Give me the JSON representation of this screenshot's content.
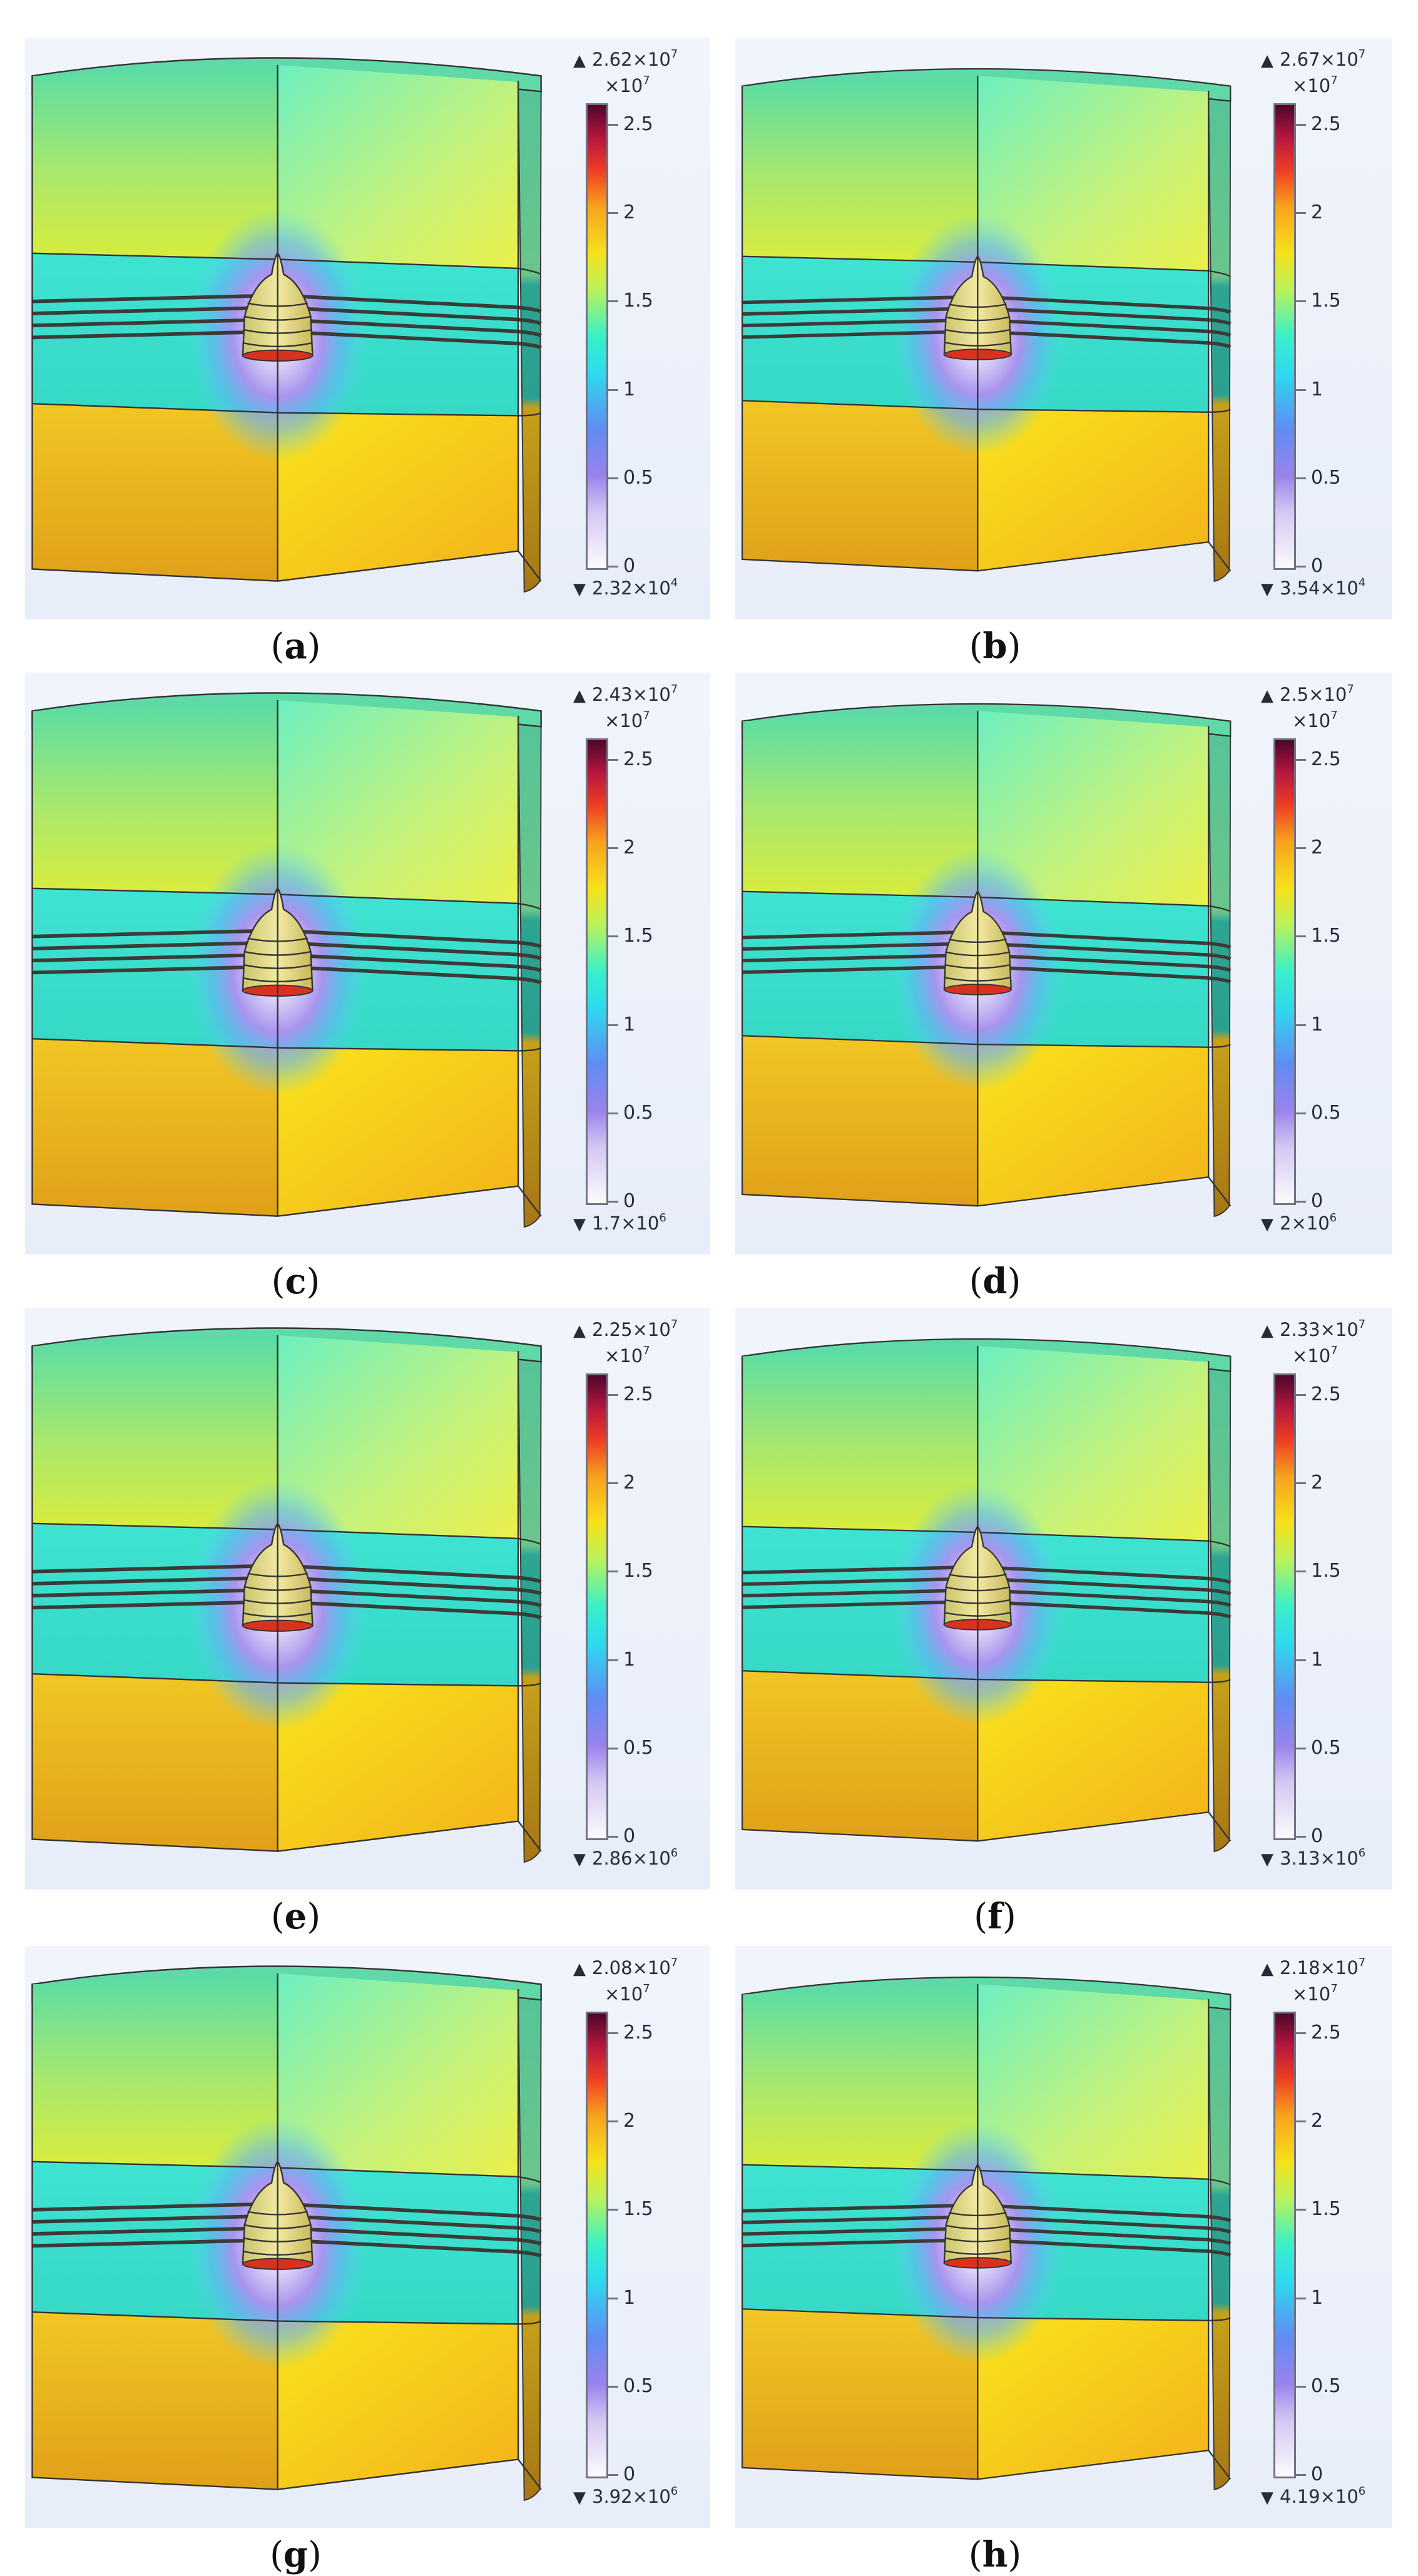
{
  "colorbar": {
    "exponent_label": "×10",
    "exponent": "7",
    "tick_labels": [
      "2.5",
      "2",
      "1.5",
      "1",
      "0.5",
      "0"
    ]
  },
  "panels": [
    {
      "label": "a",
      "max_mantissa": "2.62×10",
      "max_exp": "7",
      "min_mantissa": "2.32×10",
      "min_exp": "4"
    },
    {
      "label": "b",
      "max_mantissa": "2.67×10",
      "max_exp": "7",
      "min_mantissa": "3.54×10",
      "min_exp": "4"
    },
    {
      "label": "c",
      "max_mantissa": "2.43×10",
      "max_exp": "7",
      "min_mantissa": "1.7×10",
      "min_exp": "6"
    },
    {
      "label": "d",
      "max_mantissa": "2.5×10",
      "max_exp": "7",
      "min_mantissa": "2×10",
      "min_exp": "6"
    },
    {
      "label": "e",
      "max_mantissa": "2.25×10",
      "max_exp": "7",
      "min_mantissa": "2.86×10",
      "min_exp": "6"
    },
    {
      "label": "f",
      "max_mantissa": "2.33×10",
      "max_exp": "7",
      "min_mantissa": "3.13×10",
      "min_exp": "6"
    },
    {
      "label": "g",
      "max_mantissa": "2.08×10",
      "max_exp": "7",
      "min_mantissa": "3.92×10",
      "min_exp": "6"
    },
    {
      "label": "h",
      "max_mantissa": "2.18×10",
      "max_exp": "7",
      "min_mantissa": "4.19×10",
      "min_exp": "6"
    }
  ]
}
